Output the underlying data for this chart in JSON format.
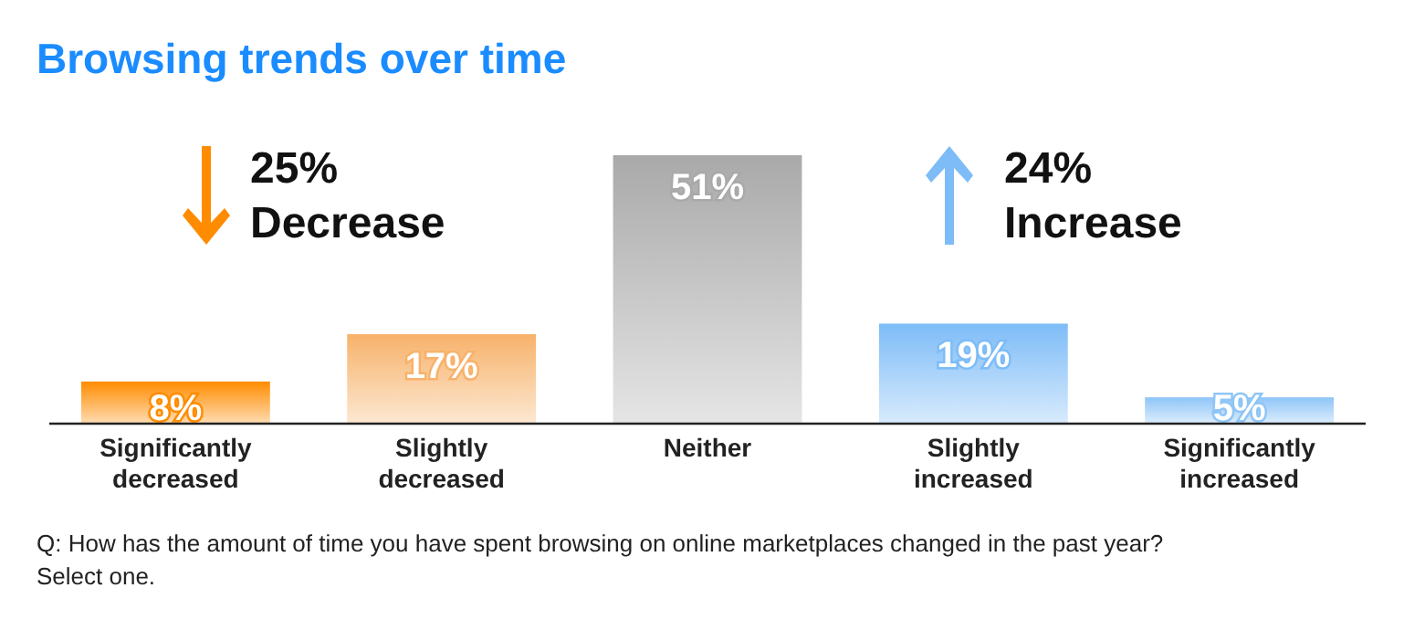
{
  "chart_data": {
    "type": "bar",
    "title": "Browsing trends over time",
    "categories": [
      "Significantly decreased",
      "Slightly decreased",
      "Neither",
      "Slightly increased",
      "Significantly increased"
    ],
    "values": [
      8,
      17,
      51,
      19,
      5
    ],
    "colors": [
      "#ff8c00",
      "#f7b26a",
      "#a9a9a9",
      "#7dbcf7",
      "#8ec5f7"
    ],
    "value_labels": [
      "8%",
      "17%",
      "51%",
      "19%",
      "5%"
    ],
    "annotations": [
      "25% Decrease",
      "24% Increase",
      "Q: How has the amount of time you have spent browsing on online marketplaces changed in the past year? Select one."
    ]
  }
}
